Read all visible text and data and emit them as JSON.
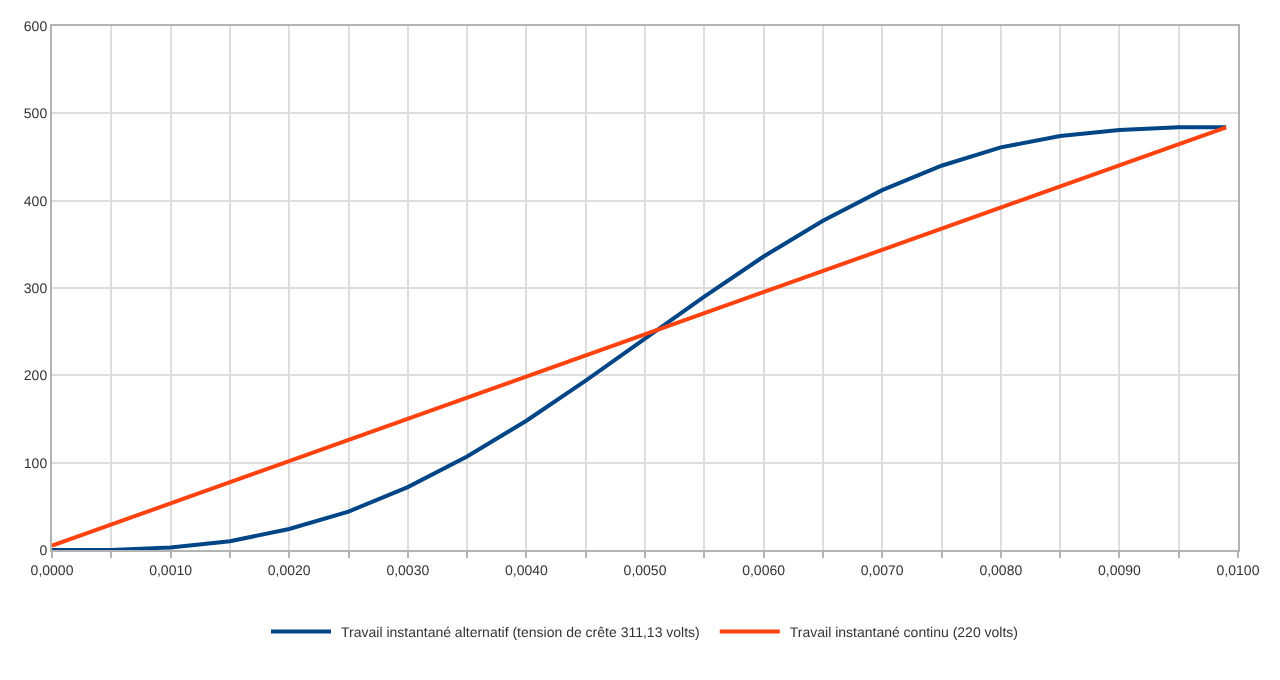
{
  "chart_data": {
    "type": "line",
    "xlim": [
      0,
      0.01
    ],
    "ylim": [
      0,
      600
    ],
    "xticks": [
      {
        "value": 0,
        "label": "0,0000"
      },
      {
        "value": 0.0005,
        "label": null
      },
      {
        "value": 0.001,
        "label": "0,0010"
      },
      {
        "value": 0.0015,
        "label": null
      },
      {
        "value": 0.002,
        "label": "0,0020"
      },
      {
        "value": 0.0025,
        "label": null
      },
      {
        "value": 0.003,
        "label": "0,0030"
      },
      {
        "value": 0.0035,
        "label": null
      },
      {
        "value": 0.004,
        "label": "0,0040"
      },
      {
        "value": 0.0045,
        "label": null
      },
      {
        "value": 0.005,
        "label": "0,0050"
      },
      {
        "value": 0.0055,
        "label": null
      },
      {
        "value": 0.006,
        "label": "0,0060"
      },
      {
        "value": 0.0065,
        "label": null
      },
      {
        "value": 0.007,
        "label": "0,0070"
      },
      {
        "value": 0.0075,
        "label": null
      },
      {
        "value": 0.008,
        "label": "0,0080"
      },
      {
        "value": 0.0085,
        "label": null
      },
      {
        "value": 0.009,
        "label": "0,0090"
      },
      {
        "value": 0.0095,
        "label": null
      },
      {
        "value": 0.01,
        "label": "0,0100"
      }
    ],
    "yticks": [
      0,
      100,
      200,
      300,
      400,
      500,
      600
    ],
    "grid": true,
    "legend": "bottom",
    "marker": "none",
    "line_style": "solid",
    "series": [
      {
        "name": "Travail instantané alternatif (tension de crête 311,13 volts)",
        "color": "#004586",
        "x": [
          0,
          0.0005,
          0.001,
          0.0015,
          0.002,
          0.0025,
          0.003,
          0.0035,
          0.004,
          0.0045,
          0.005,
          0.0055,
          0.006,
          0.0065,
          0.007,
          0.0075,
          0.008,
          0.0085,
          0.009,
          0.0095,
          0.0099
        ],
        "values": [
          0,
          0,
          3,
          10,
          24,
          44,
          72,
          107,
          148,
          194,
          242,
          290,
          336,
          377,
          412,
          440,
          461,
          474,
          481,
          484,
          484
        ]
      },
      {
        "name": "Travail instantané continu (220 volts)",
        "color": "#ff420e",
        "x": [
          0,
          0.0099
        ],
        "values": [
          5,
          484
        ]
      }
    ]
  }
}
